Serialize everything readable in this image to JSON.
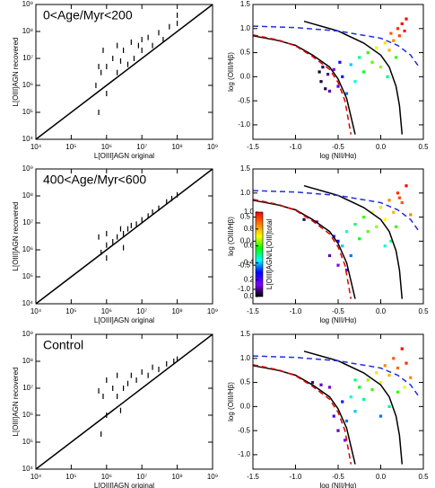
{
  "chart_data": [
    {
      "type": "scatter",
      "xscale": "log",
      "yscale": "log",
      "annotation": "0<Age/Myr<200",
      "xlabel": "L[OIII]AGN original",
      "ylabel": "L[OIII]AGN recovered",
      "color": "#000000",
      "xlim": [
        10000,
        1000000000
      ],
      "ylim": [
        10000,
        1000000000
      ],
      "xticks": [
        {
          "value": 10000,
          "label": "10⁴"
        },
        {
          "value": 100000,
          "label": "10⁵"
        },
        {
          "value": 1000000,
          "label": "10⁶"
        },
        {
          "value": 10000000,
          "label": "10⁷"
        },
        {
          "value": 100000000,
          "label": "10⁸"
        },
        {
          "value": 1000000000,
          "label": "10⁹"
        }
      ],
      "yticks": [
        {
          "value": 10000,
          "label": "10⁴"
        },
        {
          "value": 100000,
          "label": "10⁵"
        },
        {
          "value": 1000000,
          "label": "10⁶"
        },
        {
          "value": 10000000,
          "label": "10⁷"
        },
        {
          "value": 100000000,
          "label": "10⁸"
        },
        {
          "value": 1000000000,
          "label": "10⁹"
        }
      ],
      "x": [
        600000,
        600000,
        700000,
        800000,
        1000000,
        1000000,
        1500000,
        2000000,
        2000000,
        3000000,
        4000000,
        5000000,
        6000000,
        8000000,
        10000000,
        10000000,
        15000000,
        20000000,
        30000000,
        40000000,
        60000000,
        100000000,
        100000000,
        500000,
        2500000
      ],
      "y": [
        5000000,
        100000,
        3000000,
        20000000,
        5000000,
        500000,
        10000000,
        30000000,
        3000000,
        20000000,
        6000000,
        40000000,
        10000000,
        30000000,
        50000000,
        20000000,
        60000000,
        30000000,
        90000000,
        50000000,
        150000000,
        400000000,
        200000000,
        1000000,
        8000000
      ],
      "lines": [
        {
          "color": "#000000",
          "dash": "none",
          "x": [
            10000,
            1000000000
          ],
          "y": [
            10000,
            1000000000
          ]
        }
      ]
    },
    {
      "type": "scatter",
      "xlabel": "log (NII/Hα)",
      "ylabel": "log (OIII/Hβ)",
      "xlim": [
        -1.5,
        0.5
      ],
      "ylim": [
        -1.3,
        1.5
      ],
      "xticks": [
        -1.5,
        {
          "value": -1,
          "label": "-1.0"
        },
        -0.5,
        {
          "value": 0,
          "label": "0.0"
        },
        0.5
      ],
      "yticks": [
        {
          "value": -1,
          "label": "-1.0"
        },
        -0.5,
        {
          "value": 0,
          "label": "0.0"
        },
        0.5,
        {
          "value": 1,
          "label": "1.0"
        },
        1.5
      ],
      "colormap": [
        "#000000",
        "#7f00ff",
        "#0000ff",
        "#00ffff",
        "#00ff00",
        "#ffff00",
        "#ff7f00",
        "#ff0000"
      ],
      "clim": [
        0,
        1
      ],
      "x": [
        -0.72,
        -0.7,
        -0.68,
        -0.65,
        -0.62,
        -0.6,
        -0.55,
        -0.5,
        -0.48,
        -0.45,
        -0.4,
        -0.35,
        -0.3,
        -0.25,
        -0.2,
        -0.15,
        -0.1,
        -0.05,
        0,
        0.05,
        0.1,
        0.12,
        0.15,
        0.2,
        0.22,
        0.25,
        0.28,
        0.3,
        0.18,
        0.08
      ],
      "y": [
        0.1,
        -0.1,
        0.2,
        -0.25,
        0.05,
        -0.3,
        0.15,
        -0.2,
        0.3,
        0,
        -0.35,
        0.25,
        -0.1,
        0.4,
        0.1,
        0.5,
        0.3,
        0.6,
        0.2,
        0.7,
        0.55,
        0.9,
        0.75,
        1,
        0.85,
        1.1,
        0.95,
        1.2,
        0.4,
        0
      ],
      "c": [
        0.02,
        0.03,
        0.05,
        0.04,
        0.08,
        0.1,
        0.15,
        0.2,
        0.25,
        0.3,
        0.35,
        0.4,
        0.45,
        0.5,
        0.55,
        0.6,
        0.62,
        0.7,
        0.65,
        0.75,
        0.8,
        0.9,
        0.85,
        0.95,
        0.92,
        1,
        0.97,
        1,
        0.6,
        0.5
      ],
      "lines": [
        {
          "color": "#000000",
          "dash": "none",
          "x": [
            -1.5,
            -1.2,
            -1,
            -0.8,
            -0.6,
            -0.5,
            -0.4,
            -0.3
          ],
          "y": [
            0.85,
            0.75,
            0.65,
            0.45,
            0.2,
            -0.05,
            -0.45,
            -1.2
          ]
        },
        {
          "color": "#e00000",
          "dash": "6,4",
          "x": [
            -1.5,
            -1.2,
            -1,
            -0.8,
            -0.6,
            -0.5,
            -0.42,
            -0.35
          ],
          "y": [
            0.87,
            0.76,
            0.64,
            0.42,
            0.15,
            -0.12,
            -0.5,
            -1.2
          ]
        },
        {
          "color": "#000000",
          "dash": "none",
          "x": [
            -0.9,
            -0.5,
            -0.2,
            0,
            0.1,
            0.18,
            0.22,
            0.25
          ],
          "y": [
            1.15,
            0.95,
            0.7,
            0.45,
            0.2,
            -0.2,
            -0.6,
            -1.2
          ]
        },
        {
          "color": "#2030e0",
          "dash": "6,4",
          "x": [
            -1.5,
            -1,
            -0.5,
            0,
            0.2,
            0.35,
            0.45
          ],
          "y": [
            1.05,
            1.02,
            0.95,
            0.8,
            0.65,
            0.45,
            0.2
          ]
        }
      ]
    },
    {
      "type": "scatter",
      "xscale": "log",
      "yscale": "log",
      "annotation": "400<Age/Myr<600",
      "xlabel": "L[OIII]AGN original",
      "ylabel": "L[OIII]AGN recovered",
      "color": "#000000",
      "xlim": [
        10000,
        1000000000
      ],
      "ylim": [
        10000,
        1000000000
      ],
      "xticks": [
        {
          "value": 10000,
          "label": "10⁴"
        },
        {
          "value": 100000,
          "label": "10⁵"
        },
        {
          "value": 1000000,
          "label": "10⁶"
        },
        {
          "value": 10000000,
          "label": "10⁷"
        },
        {
          "value": 100000000,
          "label": "10⁸"
        },
        {
          "value": 1000000000,
          "label": "10⁹"
        }
      ],
      "yticks": [
        {
          "value": 10000,
          "label": "10⁴"
        },
        {
          "value": 100000,
          "label": "10⁵"
        },
        {
          "value": 1000000,
          "label": "10⁶"
        },
        {
          "value": 10000000,
          "label": "10⁷"
        },
        {
          "value": 100000000,
          "label": "10⁸"
        },
        {
          "value": 1000000000,
          "label": "10⁹"
        }
      ],
      "x": [
        600000,
        700000,
        1000000,
        1000000,
        1500000,
        2000000,
        2500000,
        3000000,
        4000000,
        5000000,
        7000000,
        10000000,
        15000000,
        20000000,
        30000000,
        50000000,
        70000000,
        100000000,
        1000000,
        3000000
      ],
      "y": [
        3000000,
        800000,
        1500000,
        4000000,
        2000000,
        3000000,
        6000000,
        4000000,
        6000000,
        8000000,
        9000000,
        13000000,
        18000000,
        25000000,
        35000000,
        60000000,
        80000000,
        110000000,
        500000,
        1200000
      ],
      "lines": [
        {
          "color": "#000000",
          "dash": "none",
          "x": [
            10000,
            1000000000
          ],
          "y": [
            10000,
            1000000000
          ]
        }
      ]
    },
    {
      "type": "scatter",
      "xlabel": "log (NII/Hα)",
      "ylabel": "log (OIII/Hβ)",
      "xlim": [
        -1.5,
        0.5
      ],
      "ylim": [
        -1.3,
        1.5
      ],
      "xticks": [
        -1.5,
        {
          "value": -1,
          "label": "-1.0"
        },
        -0.5,
        {
          "value": 0,
          "label": "0.0"
        },
        0.5
      ],
      "yticks": [
        {
          "value": -1,
          "label": "-1.0"
        },
        -0.5,
        {
          "value": 0,
          "label": "0.0"
        },
        0.5,
        {
          "value": 1,
          "label": "1.0"
        },
        1.5
      ],
      "colormap": [
        "#000000",
        "#7f00ff",
        "#0000ff",
        "#00ffff",
        "#00ff00",
        "#ffff00",
        "#ff7f00",
        "#ff0000"
      ],
      "clim": [
        0,
        1
      ],
      "colorbar": {
        "label": "L[OIII]AGN/L[OIII]total",
        "ticks": [
          {
            "value": 0,
            "label": "0.0"
          },
          0.2,
          0.4,
          0.6,
          0.8,
          {
            "value": 1,
            "label": "1.0"
          }
        ]
      },
      "x": [
        -0.9,
        -0.75,
        -0.6,
        -0.55,
        -0.5,
        -0.45,
        -0.4,
        -0.35,
        -0.3,
        -0.25,
        -0.2,
        -0.15,
        -0.1,
        -0.05,
        0,
        0.05,
        0.1,
        0.15,
        0.2,
        0.25,
        0.3,
        0.35,
        0.18,
        0.12,
        -0.4,
        -0.5,
        0.05,
        0.22
      ],
      "y": [
        0.45,
        0.4,
        -0.3,
        0.1,
        -0.5,
        -0.1,
        0.2,
        -0.3,
        0.35,
        0.05,
        0.5,
        0.2,
        0.6,
        0.3,
        0.7,
        0.45,
        0.85,
        0.6,
        1,
        0.8,
        1.15,
        0.55,
        0.3,
        0.0,
        -0.6,
        0.0,
        -0.1,
        0.9
      ],
      "c": [
        0.05,
        0.1,
        0.1,
        0.3,
        0.15,
        0.4,
        0.45,
        0.35,
        0.5,
        0.55,
        0.6,
        0.62,
        0.7,
        0.65,
        0.75,
        0.72,
        0.85,
        0.8,
        0.95,
        0.9,
        1,
        0.85,
        0.6,
        0.5,
        0.2,
        0.25,
        0.45,
        0.92
      ],
      "lines": [
        {
          "color": "#000000",
          "dash": "none",
          "x": [
            -1.5,
            -1.2,
            -1,
            -0.8,
            -0.6,
            -0.5,
            -0.4,
            -0.3
          ],
          "y": [
            0.85,
            0.75,
            0.65,
            0.45,
            0.2,
            -0.05,
            -0.45,
            -1.2
          ]
        },
        {
          "color": "#e00000",
          "dash": "6,4",
          "x": [
            -1.5,
            -1.2,
            -1,
            -0.8,
            -0.6,
            -0.5,
            -0.42,
            -0.35
          ],
          "y": [
            0.87,
            0.76,
            0.64,
            0.42,
            0.15,
            -0.12,
            -0.5,
            -1.2
          ]
        },
        {
          "color": "#000000",
          "dash": "none",
          "x": [
            -0.9,
            -0.5,
            -0.2,
            0,
            0.1,
            0.18,
            0.22,
            0.25
          ],
          "y": [
            1.15,
            0.95,
            0.7,
            0.45,
            0.2,
            -0.2,
            -0.6,
            -1.2
          ]
        },
        {
          "color": "#2030e0",
          "dash": "6,4",
          "x": [
            -1.5,
            -1,
            -0.5,
            0,
            0.2,
            0.35,
            0.45
          ],
          "y": [
            1.05,
            1.02,
            0.95,
            0.8,
            0.65,
            0.45,
            0.2
          ]
        }
      ]
    },
    {
      "type": "scatter",
      "xscale": "log",
      "yscale": "log",
      "annotation": "Control",
      "xlabel": "L[OIII]AGN original",
      "ylabel": "L[OIII]AGN recovered",
      "color": "#000000",
      "xlim": [
        10000,
        1000000000
      ],
      "ylim": [
        10000,
        1000000000
      ],
      "xticks": [
        {
          "value": 10000,
          "label": "10⁴"
        },
        {
          "value": 100000,
          "label": "10⁵"
        },
        {
          "value": 1000000,
          "label": "10⁶"
        },
        {
          "value": 10000000,
          "label": "10⁷"
        },
        {
          "value": 100000000,
          "label": "10⁸"
        },
        {
          "value": 1000000000,
          "label": "10⁹"
        }
      ],
      "yticks": [
        {
          "value": 10000,
          "label": "10⁴"
        },
        {
          "value": 100000,
          "label": "10⁵"
        },
        {
          "value": 1000000,
          "label": "10⁶"
        },
        {
          "value": 10000000,
          "label": "10⁷"
        },
        {
          "value": 100000000,
          "label": "10⁸"
        },
        {
          "value": 1000000000,
          "label": "10⁹"
        }
      ],
      "x": [
        600000,
        700000,
        800000,
        1000000,
        1000000,
        1500000,
        2000000,
        2000000,
        3000000,
        4000000,
        5000000,
        7000000,
        10000000,
        15000000,
        20000000,
        30000000,
        50000000,
        80000000,
        100000000,
        2500000
      ],
      "y": [
        8000000,
        200000,
        5000000,
        20000000,
        1000000,
        10000000,
        5000000,
        30000000,
        10000000,
        15000000,
        30000000,
        20000000,
        40000000,
        30000000,
        60000000,
        50000000,
        80000000,
        100000000,
        120000000,
        1500000
      ],
      "lines": [
        {
          "color": "#000000",
          "dash": "none",
          "x": [
            10000,
            1000000000
          ],
          "y": [
            10000,
            1000000000
          ]
        }
      ]
    },
    {
      "type": "scatter",
      "xlabel": "log (NII/Hα)",
      "ylabel": "log (OIII/Hβ)",
      "xlim": [
        -1.5,
        0.5
      ],
      "ylim": [
        -1.3,
        1.5
      ],
      "xticks": [
        -1.5,
        {
          "value": -1,
          "label": "-1.0"
        },
        -0.5,
        {
          "value": 0,
          "label": "0.0"
        },
        0.5
      ],
      "yticks": [
        {
          "value": -1,
          "label": "-1.0"
        },
        -0.5,
        {
          "value": 0,
          "label": "0.0"
        },
        0.5,
        {
          "value": 1,
          "label": "1.0"
        },
        1.5
      ],
      "colormap": [
        "#000000",
        "#7f00ff",
        "#0000ff",
        "#00ffff",
        "#00ff00",
        "#ffff00",
        "#ff7f00",
        "#ff0000"
      ],
      "clim": [
        0,
        1
      ],
      "x": [
        -0.8,
        -0.7,
        -0.6,
        -0.55,
        -0.5,
        -0.45,
        -0.42,
        -0.4,
        -0.35,
        -0.3,
        -0.25,
        -0.2,
        -0.15,
        -0.1,
        -0.05,
        0,
        0.05,
        0.1,
        0.15,
        0.2,
        0.25,
        0.3,
        0.35,
        0.2,
        0.1,
        -0.3,
        0.0,
        0.28
      ],
      "y": [
        0.5,
        0.45,
        0.4,
        -0.2,
        -0.5,
        0.1,
        -0.7,
        -0.3,
        0.2,
        -0.1,
        0.4,
        0.15,
        0.55,
        0.35,
        0.7,
        0.5,
        0.85,
        0.65,
        1.0,
        0.8,
        1.2,
        0.9,
        0.6,
        0.3,
        0.0,
        0.55,
        -0.2,
        0.4
      ],
      "c": [
        0.08,
        0.1,
        0.12,
        0.2,
        0.1,
        0.3,
        0.15,
        0.35,
        0.45,
        0.4,
        0.55,
        0.5,
        0.65,
        0.6,
        0.75,
        0.7,
        0.85,
        0.8,
        0.9,
        0.88,
        1,
        0.95,
        0.85,
        0.6,
        0.5,
        0.5,
        0.35,
        0.7
      ],
      "lines": [
        {
          "color": "#000000",
          "dash": "none",
          "x": [
            -1.5,
            -1.2,
            -1,
            -0.8,
            -0.6,
            -0.5,
            -0.4,
            -0.3
          ],
          "y": [
            0.85,
            0.75,
            0.65,
            0.45,
            0.2,
            -0.05,
            -0.45,
            -1.2
          ]
        },
        {
          "color": "#e00000",
          "dash": "6,4",
          "x": [
            -1.5,
            -1.2,
            -1,
            -0.8,
            -0.6,
            -0.5,
            -0.42,
            -0.35
          ],
          "y": [
            0.87,
            0.76,
            0.64,
            0.42,
            0.15,
            -0.12,
            -0.5,
            -1.2
          ]
        },
        {
          "color": "#000000",
          "dash": "none",
          "x": [
            -0.9,
            -0.5,
            -0.2,
            0,
            0.1,
            0.18,
            0.22,
            0.25
          ],
          "y": [
            1.15,
            0.95,
            0.7,
            0.45,
            0.2,
            -0.2,
            -0.6,
            -1.2
          ]
        },
        {
          "color": "#2030e0",
          "dash": "6,4",
          "x": [
            -1.5,
            -1,
            -0.5,
            0,
            0.2,
            0.35,
            0.45
          ],
          "y": [
            1.05,
            1.02,
            0.95,
            0.8,
            0.65,
            0.45,
            0.2
          ]
        }
      ]
    }
  ]
}
